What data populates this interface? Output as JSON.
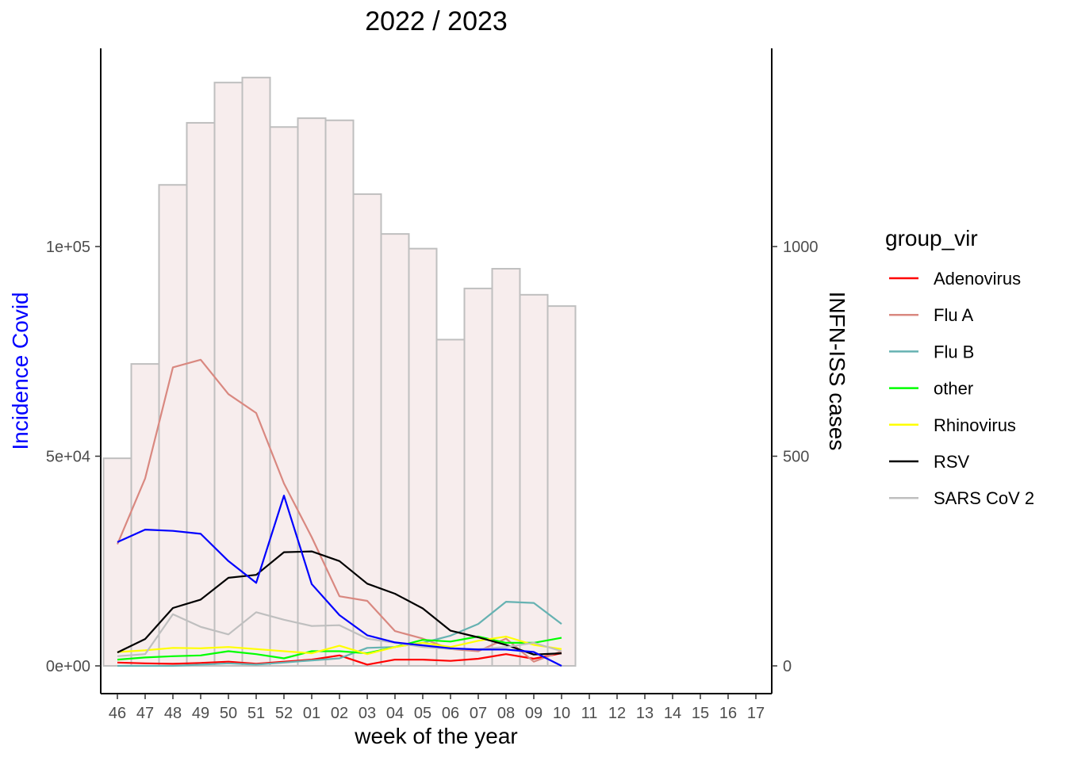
{
  "chart_data": {
    "type": "bar+line",
    "title": "2022 / 2023",
    "xlabel": "week of the year",
    "ylabel_left": "Incidence Covid",
    "ylabel_right": "INFN-ISS cases",
    "ylabel_left_color": "#0000ff",
    "weeks": [
      "46",
      "47",
      "48",
      "49",
      "50",
      "51",
      "52",
      "01",
      "02",
      "03",
      "04",
      "05",
      "06",
      "07",
      "08",
      "09",
      "10",
      "11",
      "12",
      "13",
      "14",
      "15",
      "16",
      "17"
    ],
    "left_axis": {
      "ylim": [
        0,
        140000
      ],
      "ticks": [
        0,
        50000,
        100000
      ],
      "tick_labels": [
        "0e+00",
        "5e+04",
        "1e+05"
      ]
    },
    "right_axis": {
      "ylim": [
        0,
        1400
      ],
      "ticks": [
        0,
        500,
        1000
      ],
      "tick_labels": [
        "0",
        "500",
        "1000"
      ]
    },
    "bars": {
      "axis": "right",
      "fill": "#f7eded",
      "stroke": "#bfbfbf",
      "values": [
        495,
        720,
        1147,
        1295,
        1391,
        1403,
        1285,
        1306,
        1301,
        1125,
        1030,
        995,
        778,
        900,
        947,
        885,
        858
      ]
    },
    "covid_incidence": {
      "axis": "left",
      "color": "#0000ff",
      "values": [
        29500,
        32500,
        32200,
        31500,
        25000,
        19800,
        40600,
        19500,
        12100,
        7300,
        5600,
        4900,
        4200,
        3900,
        3900,
        3300,
        0
      ]
    },
    "legend_title": "group_vir",
    "series": [
      {
        "name": "Adenovirus",
        "color": "#ff0000",
        "axis": "right",
        "values": [
          8,
          6,
          5,
          7,
          10,
          5,
          10,
          15,
          25,
          3,
          15,
          15,
          12,
          17,
          28,
          17,
          30
        ]
      },
      {
        "name": "Flu A",
        "color": "#d98880",
        "axis": "right",
        "values": [
          290,
          447,
          712,
          730,
          648,
          603,
          435,
          307,
          166,
          155,
          83,
          65,
          40,
          35,
          65,
          10,
          35
        ]
      },
      {
        "name": "Flu B",
        "color": "#66b2b2",
        "axis": "right",
        "values": [
          0,
          0,
          0,
          3,
          6,
          3,
          8,
          13,
          18,
          43,
          45,
          55,
          72,
          100,
          153,
          150,
          100
        ]
      },
      {
        "name": "other",
        "color": "#00ff00",
        "axis": "right",
        "values": [
          15,
          20,
          23,
          25,
          35,
          28,
          18,
          35,
          35,
          30,
          45,
          62,
          58,
          70,
          55,
          55,
          67
        ]
      },
      {
        "name": "Rhinovirus",
        "color": "#ffff00",
        "axis": "right",
        "values": [
          33,
          37,
          43,
          42,
          45,
          40,
          35,
          30,
          48,
          28,
          45,
          55,
          45,
          60,
          70,
          50,
          40
        ]
      },
      {
        "name": "RSV",
        "color": "#000000",
        "axis": "right",
        "values": [
          32,
          64,
          138,
          158,
          210,
          217,
          271,
          273,
          250,
          196,
          172,
          137,
          84,
          68,
          50,
          27,
          30
        ]
      },
      {
        "name": "SARS CoV 2",
        "color": "#bfbfbf",
        "axis": "right",
        "values": [
          23,
          28,
          123,
          93,
          75,
          128,
          110,
          95,
          97,
          65,
          55,
          45,
          40,
          40,
          45,
          55,
          35
        ]
      }
    ]
  }
}
